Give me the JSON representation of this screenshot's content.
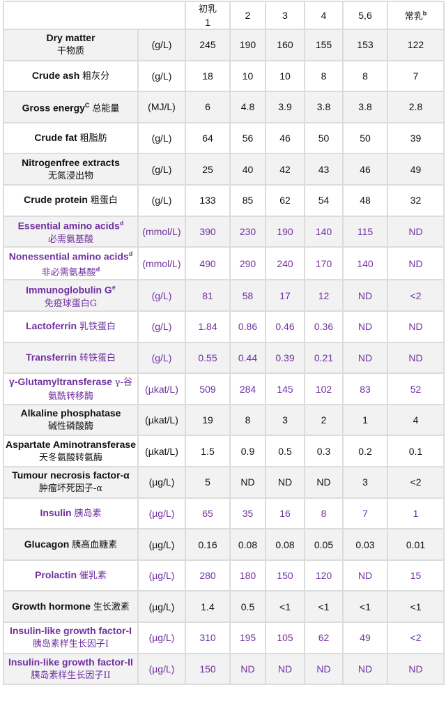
{
  "header": {
    "columns": [
      {
        "zh": "初乳",
        "label": "1"
      },
      {
        "zh": "",
        "label": "2"
      },
      {
        "zh": "",
        "label": "3"
      },
      {
        "zh": "",
        "label": "4"
      },
      {
        "zh": "",
        "label": "5,6"
      },
      {
        "zh": "常乳",
        "label": "",
        "sup": "b"
      }
    ]
  },
  "colors": {
    "highlight": "#7030a0",
    "normal": "#111111",
    "stripe": "#f2f2f2"
  },
  "rows": [
    {
      "en": "Dry matter",
      "sup": "",
      "zh": "干物质",
      "br": true,
      "unit": "(g/L)",
      "values": [
        "245",
        "190",
        "160",
        "155",
        "153",
        "122"
      ],
      "purple": false
    },
    {
      "en": "Crude ash",
      "sup": "",
      "zh": "粗灰分",
      "br": false,
      "unit": "(g/L)",
      "values": [
        "18",
        "10",
        "10",
        "8",
        "8",
        "7"
      ],
      "purple": false
    },
    {
      "en": "Gross energy",
      "sup": "C",
      "zh": "总能量",
      "br": false,
      "unit": "(MJ/L)",
      "values": [
        "6",
        "4.8",
        "3.9",
        "3.8",
        "3.8",
        "2.8"
      ],
      "purple": false
    },
    {
      "en": "Crude fat",
      "sup": "",
      "zh": "粗脂肪",
      "br": false,
      "unit": "(g/L)",
      "values": [
        "64",
        "56",
        "46",
        "50",
        "50",
        "39"
      ],
      "purple": false
    },
    {
      "en": "Nitrogenfree extracts",
      "sup": "",
      "zh": "无氮浸出物",
      "br": true,
      "unit": "(g/L)",
      "values": [
        "25",
        "40",
        "42",
        "43",
        "46",
        "49"
      ],
      "purple": false
    },
    {
      "en": "Crude protein",
      "sup": "",
      "zh": "粗蛋白",
      "br": false,
      "unit": "(g/L)",
      "values": [
        "133",
        "85",
        "62",
        "54",
        "48",
        "32"
      ],
      "purple": false
    },
    {
      "en": "Essential amino acids",
      "sup": "d",
      "zh": "必需氨基酸",
      "br": true,
      "unit": "(mmol/L)",
      "values": [
        "390",
        "230",
        "190",
        "140",
        "115",
        "ND"
      ],
      "purple": true
    },
    {
      "en": "Nonessential amino acids",
      "sup": "d",
      "zh": "非必需氨基酸",
      "zhsup": "d",
      "br": true,
      "unit": "(mmol/L)",
      "values": [
        "490",
        "290",
        "240",
        "170",
        "140",
        "ND"
      ],
      "purple": true
    },
    {
      "en": "Immunoglobulin G",
      "sup": "e",
      "zh": "免疫球蛋白G",
      "br": true,
      "unit": "(g/L)",
      "values": [
        "81",
        "58",
        "17",
        "12",
        "ND",
        "<2"
      ],
      "purple": true
    },
    {
      "en": "Lactoferrin",
      "sup": "",
      "zh": "乳铁蛋白",
      "br": false,
      "unit": "(g/L)",
      "values": [
        "1.84",
        "0.86",
        "0.46",
        "0.36",
        "ND",
        "ND"
      ],
      "purple": true
    },
    {
      "en": "Transferrin",
      "sup": "",
      "zh": "转铁蛋白",
      "br": false,
      "unit": "(g/L)",
      "values": [
        "0.55",
        "0.44",
        "0.39",
        "0.21",
        "ND",
        "ND"
      ],
      "purple": true
    },
    {
      "en": "γ-Glutamyltransferase",
      "sup": "",
      "zh": "γ-谷氨酰转移酶",
      "br": false,
      "unit": "(µkat/L)",
      "values": [
        "509",
        "284",
        "145",
        "102",
        "83",
        "52"
      ],
      "purple": true
    },
    {
      "en": "Alkaline phosphatase",
      "sup": "",
      "zh": "碱性磷酸酶",
      "br": true,
      "unit": "(µkat/L)",
      "values": [
        "19",
        "8",
        "3",
        "2",
        "1",
        "4"
      ],
      "purple": false
    },
    {
      "en": "Aspartate Aminotransferase",
      "sup": "",
      "zh": "天冬氨酸转氨酶",
      "br": false,
      "unit": "(µkat/L)",
      "values": [
        "1.5",
        "0.9",
        "0.5",
        "0.3",
        "0.2",
        "0.1"
      ],
      "purple": false
    },
    {
      "en": "Tumour necrosis factor-α",
      "sup": "",
      "zh": "肿瘤坏死因子-α",
      "br": true,
      "unit": "(µg/L)",
      "values": [
        "5",
        "ND",
        "ND",
        "ND",
        "3",
        "<2"
      ],
      "purple": false
    },
    {
      "en": "Insulin",
      "sup": "",
      "zh": "胰岛素",
      "br": false,
      "unit": "(µg/L)",
      "values": [
        "65",
        "35",
        "16",
        "8",
        "7",
        "1"
      ],
      "purple": true
    },
    {
      "en": "Glucagon",
      "sup": "",
      "zh": "胰高血糖素",
      "br": false,
      "unit": "(µg/L)",
      "values": [
        "0.16",
        "0.08",
        "0.08",
        "0.05",
        "0.03",
        "0.01"
      ],
      "purple": false
    },
    {
      "en": "Prolactin",
      "sup": "",
      "zh": "催乳素",
      "br": false,
      "unit": "(µg/L)",
      "values": [
        "280",
        "180",
        "150",
        "120",
        "ND",
        "15"
      ],
      "purple": true
    },
    {
      "en": "Growth hormone",
      "sup": "",
      "zh": "生长激素",
      "br": false,
      "unit": "(µg/L)",
      "values": [
        "1.4",
        "0.5",
        "<1",
        "<1",
        "<1",
        "<1"
      ],
      "purple": false
    },
    {
      "en": "Insulin-like growth factor-I",
      "sup": "",
      "zh": "胰岛素样生长因子I",
      "br": true,
      "unit": "(µg/L)",
      "values": [
        "310",
        "195",
        "105",
        "62",
        "49",
        "<2"
      ],
      "purple": true
    },
    {
      "en": "Insulin-like growth factor-II",
      "sup": "",
      "zh": "胰岛素样生长因子II",
      "br": true,
      "unit": "(µg/L)",
      "values": [
        "150",
        "ND",
        "ND",
        "ND",
        "ND",
        "ND"
      ],
      "purple": true
    }
  ]
}
